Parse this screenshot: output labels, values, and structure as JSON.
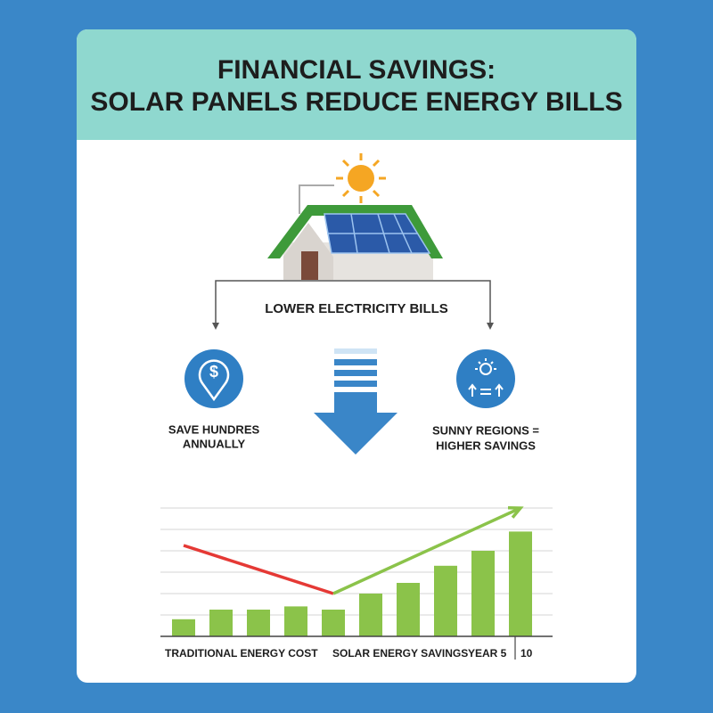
{
  "header": {
    "title_lines": [
      "FINANCIAL SAVINGS:",
      "SOLAR PANELS REDUCE ENERGY BILLS"
    ]
  },
  "diagram": {
    "center_label": "LOWER ELECTRICITY BILLS",
    "left_icon_text": "$",
    "left_label": [
      "SAVE HUNDRES",
      "ANNUALLY"
    ],
    "right_label": [
      "SUNNY REGIONS =",
      "HIGHER SAVINGS"
    ]
  },
  "chart_data": {
    "type": "bar",
    "values": [
      0.8,
      1.25,
      1.25,
      1.4,
      1.25,
      2,
      2.5,
      3.3,
      4,
      4.9
    ],
    "color": "#8bc34a",
    "ylim": [
      0,
      6
    ],
    "gridlines": [
      1,
      2,
      3,
      4,
      5,
      6
    ],
    "grid": true,
    "lines": [
      {
        "color": "#e53935",
        "values": [
          4.25,
          null,
          null,
          null,
          2,
          null,
          null,
          null,
          null,
          null
        ]
      },
      {
        "color": "#8bc34a",
        "values": [
          null,
          null,
          null,
          null,
          2,
          null,
          null,
          null,
          null,
          6
        ]
      }
    ],
    "x_labels": [
      "TRADITIONAL ENERGY COST",
      "SOLAR ENERGY SAVINGS",
      "YEAR 5",
      "10"
    ]
  }
}
